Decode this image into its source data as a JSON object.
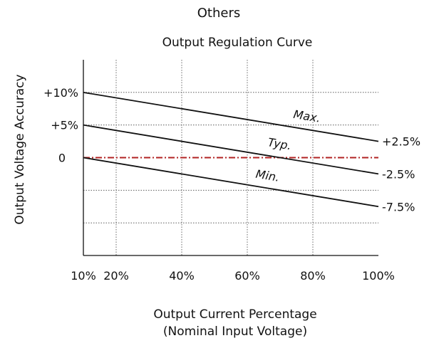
{
  "header": {
    "section": "Others"
  },
  "chart_data": {
    "type": "line",
    "title": "Output Regulation Curve",
    "xlabel": "Output Current Percentage",
    "xlabel_sub": "(Nominal Input Voltage)",
    "ylabel": "Output Voltage Accuracy",
    "x_ticks": [
      {
        "value": 10,
        "label": "10%"
      },
      {
        "value": 20,
        "label": "20%"
      },
      {
        "value": 40,
        "label": "40%"
      },
      {
        "value": 60,
        "label": "60%"
      },
      {
        "value": 80,
        "label": "80%"
      },
      {
        "value": 100,
        "label": "100%"
      }
    ],
    "y_ticks_left": [
      {
        "value": 10,
        "label": "+10%"
      },
      {
        "value": 5,
        "label": "+5%"
      },
      {
        "value": 0,
        "label": "0"
      }
    ],
    "xlim": [
      10,
      100
    ],
    "ylim": [
      -15,
      15
    ],
    "grid": true,
    "series": [
      {
        "name": "Max.",
        "x": [
          10,
          100
        ],
        "y": [
          10,
          2.5
        ],
        "end_label": "+2.5%",
        "color": "#111111"
      },
      {
        "name": "Typ.",
        "x": [
          10,
          100
        ],
        "y": [
          5,
          -2.5
        ],
        "end_label": "-2.5%",
        "color": "#111111"
      },
      {
        "name": "Min.",
        "x": [
          10,
          100
        ],
        "y": [
          0,
          -7.5
        ],
        "end_label": "-7.5%",
        "color": "#111111"
      }
    ],
    "reference_line": {
      "y": 0,
      "color": "#b22222",
      "style": "dash-dot"
    }
  }
}
